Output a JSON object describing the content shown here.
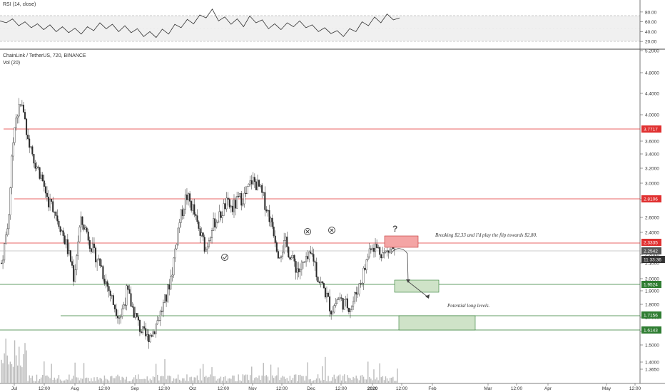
{
  "rsi_panel": {
    "title": "RSI (14, close)",
    "ticks": [
      {
        "label": "80.00",
        "value": 80
      },
      {
        "label": "60.00",
        "value": 60
      },
      {
        "label": "40.00",
        "value": 40
      },
      {
        "label": "20.00",
        "value": 20
      }
    ],
    "band": [
      30,
      70
    ],
    "values": [
      62,
      58,
      66,
      52,
      60,
      48,
      56,
      44,
      54,
      40,
      50,
      38,
      47,
      35,
      50,
      42,
      58,
      46,
      55,
      40,
      52,
      38,
      46,
      30,
      40,
      28,
      45,
      35,
      55,
      48,
      65,
      56,
      74,
      68,
      86,
      62,
      70,
      55,
      66,
      50,
      72,
      58,
      64,
      46,
      56,
      44,
      58,
      50,
      62,
      48,
      54,
      40,
      48,
      36,
      42,
      30,
      46,
      40,
      60,
      52,
      70,
      58,
      76,
      64,
      68
    ]
  },
  "price_panel": {
    "symbol_line": "ChainLink / TetherUS, 720, BINANCE",
    "vol_line": "Vol (20)",
    "yticks": [
      "5.2000",
      "4.8000",
      "4.4000",
      "4.0000",
      "3.6000",
      "3.4000",
      "3.2000",
      "3.0000",
      "2.8000",
      "2.6000",
      "2.4000",
      "2.2000",
      "2.1000",
      "2.0000",
      "1.9000",
      "1.8000",
      "1.7000",
      "1.6000",
      "1.5000",
      "1.4000",
      "1.3650"
    ],
    "xticks": [
      "Jul",
      "12:00",
      "Aug",
      "12:00",
      "Sep",
      "12:00",
      "Oct",
      "12:00",
      "Nov",
      "12:00",
      "Dec",
      "12:00",
      "2020",
      "12:00",
      "Feb",
      "Mar",
      "12:00",
      "Apr",
      "May",
      "12:00"
    ],
    "price_labels": [
      {
        "text": "3.7717",
        "color": "#e03030"
      },
      {
        "text": "2.8106",
        "color": "#e03030"
      },
      {
        "text": "2.3335",
        "color": "#e03030"
      },
      {
        "text": "2.2542",
        "color": "#555555"
      },
      {
        "text": "11:33:36",
        "color": "#333333"
      },
      {
        "text": "1.9524",
        "color": "#2f7d32"
      },
      {
        "text": "1.7156",
        "color": "#2f7d32"
      },
      {
        "text": "1.6143",
        "color": "#2f7d32"
      }
    ],
    "annotation_breaking": "Breaking $2,33 and I'd play the flip towards $2,80.",
    "annotation_long": "Potential long levels.",
    "question_mark": "?",
    "colors": {
      "resistance": "#e03030",
      "support": "#2f7d32",
      "candle_body": "#2a2a2a",
      "zone_red": "#f4a5a5",
      "zone_green": "#cfe3c8"
    }
  },
  "chart_data": {
    "type": "candlestick",
    "title": "ChainLink / TetherUS, 720, BINANCE",
    "ylim": [
      1.3,
      5.4
    ],
    "close_path": [
      2.1,
      2.5,
      3.9,
      4.2,
      3.7,
      3.3,
      3.1,
      2.8,
      2.7,
      2.45,
      2.25,
      2.0,
      2.55,
      2.4,
      2.2,
      2.1,
      1.95,
      1.8,
      1.7,
      1.9,
      1.75,
      1.62,
      1.55,
      1.6,
      1.72,
      1.85,
      2.1,
      2.55,
      2.85,
      2.7,
      2.4,
      2.25,
      2.5,
      2.6,
      2.75,
      2.7,
      2.8,
      2.85,
      3.05,
      2.95,
      2.75,
      2.5,
      2.2,
      2.3,
      2.15,
      2.05,
      2.1,
      2.2,
      2.0,
      1.9,
      1.75,
      1.85,
      1.8,
      1.78,
      1.92,
      2.05,
      2.3,
      2.25,
      2.2,
      2.25,
      2.26
    ],
    "horizontal_levels": [
      3.7717,
      2.8106,
      2.3335,
      2.2542,
      1.9524,
      1.7156,
      1.6143
    ]
  }
}
